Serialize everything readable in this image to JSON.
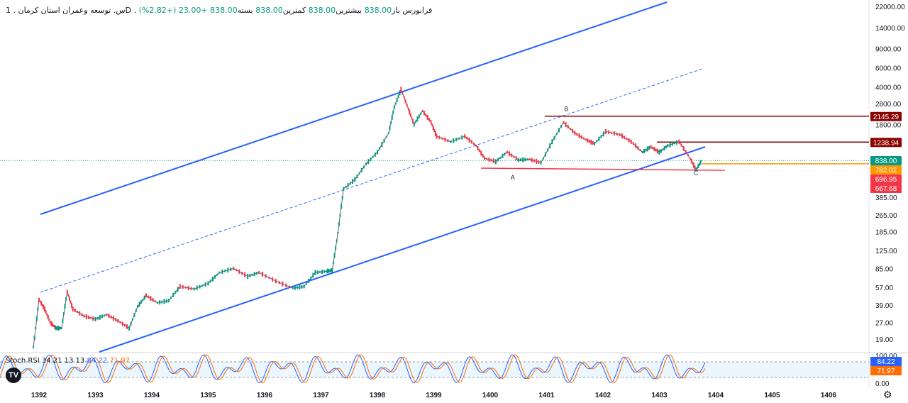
{
  "header": {
    "title": "س. توسعه وعمران استان کرمان",
    "interval": "1D",
    "exchange": "فرابورس",
    "open_label": "باز",
    "open": "838.00",
    "high_label": "بیشترین",
    "high": "838.00",
    "low_label": "کمترین",
    "low": "838.00",
    "close_label": "بسته",
    "close": "838.00",
    "change": "+23.00 (+2.82%)"
  },
  "stoch": {
    "label": "Stoch RSI",
    "params": "34 21 13 13",
    "k_value": "84.22",
    "d_value": "71.97"
  },
  "colors": {
    "up": "#089981",
    "down": "#f23645",
    "channel": "#2962ff",
    "resistance": "#8b0000",
    "support": "#f23645",
    "current": "#ff9800",
    "stoch_k": "#2962ff",
    "stoch_d": "#ff6d00"
  },
  "chart_data": {
    "type": "line",
    "y_scale": "log",
    "x_ticks": [
      "1392",
      "1393",
      "1394",
      "1395",
      "1396",
      "1397",
      "1398",
      "1399",
      "1400",
      "1401",
      "1402",
      "1403",
      "1404",
      "1405",
      "1406"
    ],
    "y_ticks": [
      "22000.00",
      "14000.00",
      "9000.00",
      "6000.00",
      "4000.00",
      "2800.00",
      "1800.00",
      "1240.00",
      "838.00",
      "385.00",
      "265.00",
      "185.00",
      "125.00",
      "85.00",
      "57.00",
      "39.00",
      "27.00",
      "19.00"
    ],
    "y_tick_values": [
      22000,
      14000,
      9000,
      6000,
      4000,
      2800,
      1800,
      1240,
      838,
      385,
      265,
      185,
      125,
      85,
      57,
      39,
      27,
      19
    ],
    "price": [
      [
        1391.9,
        16
      ],
      [
        1392.0,
        44
      ],
      [
        1392.1,
        36
      ],
      [
        1392.2,
        27
      ],
      [
        1392.3,
        24
      ],
      [
        1392.4,
        24
      ],
      [
        1392.5,
        52
      ],
      [
        1392.6,
        36
      ],
      [
        1392.8,
        31
      ],
      [
        1393.0,
        29
      ],
      [
        1393.2,
        32
      ],
      [
        1393.4,
        28
      ],
      [
        1393.6,
        24
      ],
      [
        1393.75,
        38
      ],
      [
        1393.9,
        48
      ],
      [
        1394.1,
        41
      ],
      [
        1394.3,
        43
      ],
      [
        1394.5,
        58
      ],
      [
        1394.75,
        55
      ],
      [
        1395.0,
        62
      ],
      [
        1395.2,
        78
      ],
      [
        1395.45,
        85
      ],
      [
        1395.7,
        72
      ],
      [
        1395.9,
        78
      ],
      [
        1396.2,
        65
      ],
      [
        1396.5,
        56
      ],
      [
        1396.7,
        58
      ],
      [
        1396.9,
        78
      ],
      [
        1397.1,
        80
      ],
      [
        1397.2,
        82
      ],
      [
        1397.3,
        180
      ],
      [
        1397.4,
        460
      ],
      [
        1397.6,
        560
      ],
      [
        1397.8,
        780
      ],
      [
        1398.0,
        1000
      ],
      [
        1398.2,
        1500
      ],
      [
        1398.3,
        2600
      ],
      [
        1398.42,
        3800
      ],
      [
        1398.55,
        2500
      ],
      [
        1398.65,
        1800
      ],
      [
        1398.8,
        2400
      ],
      [
        1398.95,
        1900
      ],
      [
        1399.05,
        1400
      ],
      [
        1399.3,
        1250
      ],
      [
        1399.55,
        1400
      ],
      [
        1399.75,
        1150
      ],
      [
        1399.9,
        880
      ],
      [
        1400.1,
        820
      ],
      [
        1400.3,
        1000
      ],
      [
        1400.5,
        850
      ],
      [
        1400.7,
        860
      ],
      [
        1400.9,
        800
      ],
      [
        1401.1,
        1250
      ],
      [
        1401.3,
        1880
      ],
      [
        1401.5,
        1500
      ],
      [
        1401.7,
        1300
      ],
      [
        1401.85,
        1200
      ],
      [
        1402.05,
        1550
      ],
      [
        1402.3,
        1450
      ],
      [
        1402.5,
        1250
      ],
      [
        1402.7,
        1000
      ],
      [
        1402.85,
        1120
      ],
      [
        1403.0,
        1000
      ],
      [
        1403.15,
        1150
      ],
      [
        1403.35,
        1250
      ],
      [
        1403.55,
        870
      ],
      [
        1403.65,
        690
      ],
      [
        1403.75,
        838
      ]
    ],
    "levels": [
      {
        "label": "2145.29",
        "value": 2145.29,
        "color": "#8b0000"
      },
      {
        "label": "1238.94",
        "value": 1238.94,
        "color": "#8b0000"
      },
      {
        "label": "838.00",
        "value": 838,
        "color": "#089981"
      },
      {
        "label": "782.02",
        "value": 782.02,
        "color": "#ff9800"
      },
      {
        "label": "696.95",
        "value": 696.95,
        "color": "#f23645"
      },
      {
        "label": "667.68",
        "value": 667.68,
        "color": "#f23645"
      }
    ],
    "annotations": [
      {
        "text": "A",
        "x": 1400.4,
        "y": 560
      },
      {
        "text": "B",
        "x": 1401.35,
        "y": 2400
      },
      {
        "text": "C",
        "x": 1403.65,
        "y": 620
      }
    ],
    "stoch_scale": [
      "100.00",
      "0.00"
    ]
  }
}
